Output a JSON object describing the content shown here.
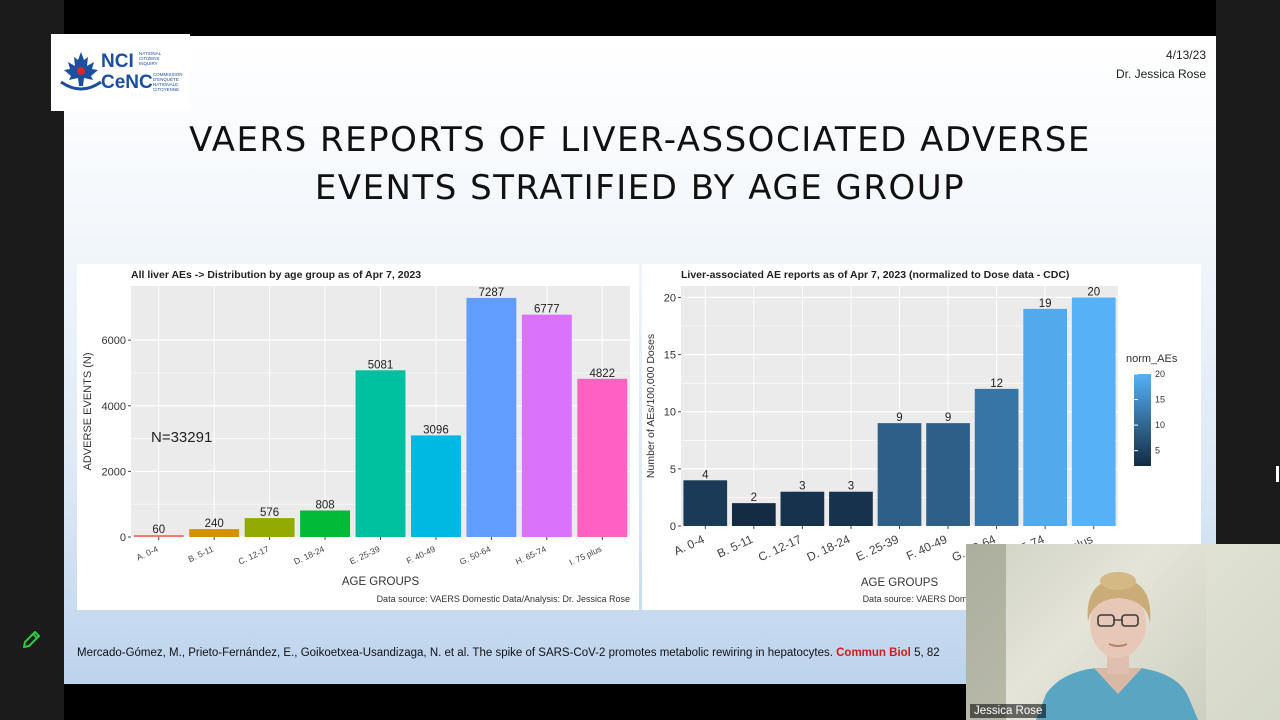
{
  "slide": {
    "date": "4/13/23",
    "author": "Dr. Jessica Rose",
    "title_line1": "VAERS REPORTS OF LIVER-ASSOCIATED ADVERSE",
    "title_line2": "EVENTS STRATIFIED BY AGE GROUP",
    "citation_text": "Mercado-Gómez, M., Prieto-Fernández, E., Goikoetxea-Usandizaga, N. et al. The spike of SARS-CoV-2 promotes metabolic rewiring in hepatocytes. ",
    "citation_journal": "Commun Biol",
    "citation_rest": " 5, 82"
  },
  "logo": {
    "nci": "NCI",
    "cenc": "CeNC",
    "sub1": "NATIONAL",
    "sub2": "CITIZENS",
    "sub3": "INQUIRY",
    "sub4": "COMMISSION",
    "sub5": "D'ENQUÊTE",
    "sub6": "NATIONALE",
    "sub7": "CITOYENNE"
  },
  "video": {
    "participant_name": "Jessica Rose"
  },
  "icons": {
    "annotate": "pencil-icon"
  },
  "chart_data": [
    {
      "type": "bar",
      "title": "All liver AEs -> Distribution by age group as of Apr 7, 2023",
      "xlabel": "AGE GROUPS",
      "ylabel": "ADVERSE EVENTS (N)",
      "annotation": "N=33291",
      "source": "Data source: VAERS Domestic Data/Analysis: Dr. Jessica Rose",
      "categories": [
        "A. 0-4",
        "B. 5-11",
        "C. 12-17",
        "D. 18-24",
        "E. 25-39",
        "F. 40-49",
        "G. 50-64",
        "H. 65-74",
        "I. 75 plus"
      ],
      "values": [
        60,
        240,
        576,
        808,
        5081,
        3096,
        7287,
        6777,
        4822
      ],
      "colors": [
        "#f8766d",
        "#d39200",
        "#93aa00",
        "#00ba38",
        "#00c19f",
        "#00b9e3",
        "#619cff",
        "#db72fb",
        "#ff61c3"
      ],
      "yticks": [
        0,
        2000,
        4000,
        6000
      ],
      "ylim": [
        0,
        7650
      ],
      "grid": true,
      "legend": "none"
    },
    {
      "type": "bar",
      "title": "Liver-associated AE reports as of Apr 7, 2023 (normalized to Dose data - CDC)",
      "xlabel": "AGE GROUPS",
      "ylabel": "Number of AEs/100,000 Doses",
      "source": "Data source: VAERS Domestic Data/Analysis: Dr. Jessica Rose",
      "categories": [
        "A. 0-4",
        "B. 5-11",
        "C. 12-17",
        "D. 18-24",
        "E. 25-39",
        "F. 40-49",
        "G. 50-64",
        "H. 65-74",
        "I. 75 plus"
      ],
      "values": [
        4,
        2,
        3,
        3,
        9,
        9,
        12,
        19,
        20
      ],
      "yticks": [
        0,
        5,
        10,
        15,
        20
      ],
      "ylim": [
        0,
        21
      ],
      "grid": true,
      "legend": {
        "position": "right",
        "title": "norm_AEs",
        "ticks": [
          5,
          10,
          15,
          20
        ],
        "range": [
          2,
          20
        ],
        "color_low": "#132b43",
        "color_high": "#56b1f7"
      }
    }
  ]
}
